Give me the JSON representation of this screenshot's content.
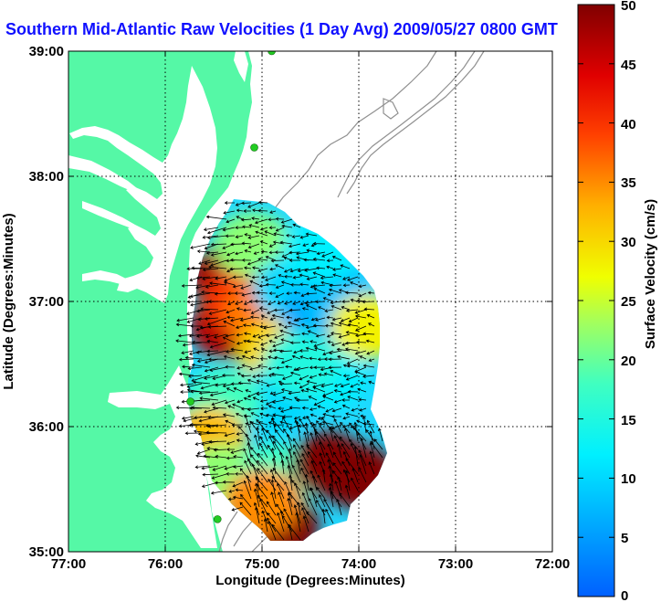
{
  "title": "Southern Mid-Atlantic Raw Velocities (1 Day Avg) 2009/05/27 0800 GMT",
  "axes": {
    "xlabel": "Longitude (Degrees:Minutes)",
    "ylabel": "Latitude (Degrees:Minutes)",
    "x_ticks": [
      "77:00",
      "76:00",
      "75:00",
      "74:00",
      "73:00",
      "72:00"
    ],
    "y_ticks": [
      "39:00",
      "38:00",
      "37:00",
      "36:00",
      "35:00"
    ]
  },
  "colorbar": {
    "label": "Surface Velocity (cm/s)",
    "min": 0,
    "max": 50,
    "ticks": [
      "50",
      "45",
      "40",
      "35",
      "30",
      "25",
      "20",
      "15",
      "10",
      "5",
      "0"
    ]
  },
  "colors": {
    "land": "#55f8a6",
    "water": "#ffffff",
    "title": "#1010ff",
    "grid": "#000000",
    "bathymetry": "#909090",
    "station": "#22cc22"
  },
  "chart_data": {
    "type": "map",
    "x_range": [
      -77.0,
      -72.0
    ],
    "y_range": [
      35.0,
      39.0
    ],
    "grid": true,
    "stations": [
      {
        "lon": -74.9,
        "lat": 39.0
      },
      {
        "lon": -75.08,
        "lat": 38.23
      },
      {
        "lon": -75.74,
        "lat": 36.2
      },
      {
        "lon": -75.46,
        "lat": 35.26
      }
    ],
    "velocity_field": {
      "units": "cm/s",
      "cells": [
        {
          "lon": -75.35,
          "lat": 37.2,
          "speed": 48
        },
        {
          "lon": -75.35,
          "lat": 36.8,
          "speed": 47
        },
        {
          "lon": -75.2,
          "lat": 37.0,
          "speed": 40
        },
        {
          "lon": -75.0,
          "lat": 36.9,
          "speed": 36
        },
        {
          "lon": -74.85,
          "lat": 36.6,
          "speed": 30
        },
        {
          "lon": -75.1,
          "lat": 37.45,
          "speed": 22
        },
        {
          "lon": -74.7,
          "lat": 37.1,
          "speed": 10
        },
        {
          "lon": -74.4,
          "lat": 36.9,
          "speed": 6
        },
        {
          "lon": -74.2,
          "lat": 37.0,
          "speed": 8
        },
        {
          "lon": -74.3,
          "lat": 36.4,
          "speed": 12
        },
        {
          "lon": -74.9,
          "lat": 36.2,
          "speed": 10
        },
        {
          "lon": -75.4,
          "lat": 36.2,
          "speed": 18
        },
        {
          "lon": -75.55,
          "lat": 35.9,
          "speed": 32
        },
        {
          "lon": -75.4,
          "lat": 35.6,
          "speed": 22
        },
        {
          "lon": -74.85,
          "lat": 35.6,
          "speed": 18
        },
        {
          "lon": -74.3,
          "lat": 35.7,
          "speed": 50
        },
        {
          "lon": -74.0,
          "lat": 35.6,
          "speed": 50
        },
        {
          "lon": -74.8,
          "lat": 35.2,
          "speed": 50
        },
        {
          "lon": -75.0,
          "lat": 35.4,
          "speed": 35
        },
        {
          "lon": -73.9,
          "lat": 36.8,
          "speed": 28
        },
        {
          "lon": -74.6,
          "lat": 36.5,
          "speed": 15
        },
        {
          "lon": -74.4,
          "lat": 37.4,
          "speed": 12
        }
      ]
    }
  }
}
